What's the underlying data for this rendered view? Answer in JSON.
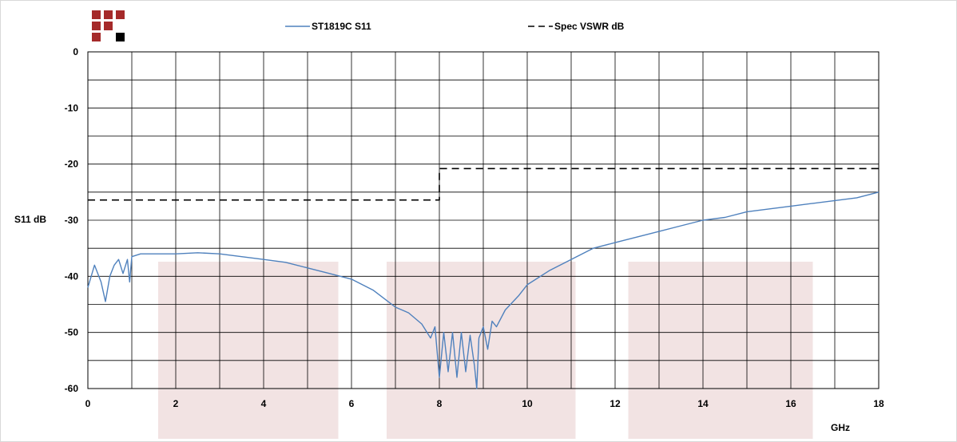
{
  "chart_data": {
    "type": "line",
    "title": "",
    "xlabel": "GHz",
    "ylabel": "S11 dB",
    "xlim": [
      0,
      18
    ],
    "ylim": [
      -60,
      0
    ],
    "x_ticks": [
      0,
      2,
      4,
      6,
      8,
      10,
      12,
      14,
      16,
      18
    ],
    "x_tick_labels": [
      "0",
      "2",
      "4",
      "6",
      "8",
      "10",
      "12",
      "14",
      "16",
      "18"
    ],
    "y_ticks": [
      0,
      -10,
      -20,
      -30,
      -40,
      -50,
      -60
    ],
    "y_tick_labels": [
      "0",
      "-10",
      "-20",
      "-30",
      "-40",
      "-50",
      "-60"
    ],
    "grid": true,
    "legend_position": "top-center",
    "highlight_bands": [
      [
        1.6,
        5.7
      ],
      [
        6.8,
        11.1
      ],
      [
        12.3,
        16.5
      ]
    ],
    "series": [
      {
        "name": "ST1819C S11",
        "color": "#4f81bd",
        "style": "solid",
        "x": [
          0.0,
          0.15,
          0.3,
          0.4,
          0.5,
          0.6,
          0.7,
          0.8,
          0.9,
          0.95,
          1.0,
          1.2,
          1.5,
          2.0,
          2.5,
          3.0,
          3.5,
          4.0,
          4.5,
          5.0,
          5.5,
          6.0,
          6.5,
          7.0,
          7.3,
          7.6,
          7.8,
          7.9,
          8.0,
          8.1,
          8.2,
          8.3,
          8.4,
          8.5,
          8.6,
          8.7,
          8.8,
          8.85,
          8.9,
          9.0,
          9.1,
          9.2,
          9.3,
          9.5,
          9.8,
          10.0,
          10.5,
          11.0,
          11.5,
          12.0,
          12.5,
          13.0,
          13.5,
          14.0,
          14.5,
          15.0,
          15.5,
          16.0,
          16.5,
          17.0,
          17.5,
          18.0
        ],
        "y": [
          -42,
          -38,
          -41,
          -44.5,
          -40,
          -38,
          -37,
          -39.5,
          -37,
          -41,
          -36.5,
          -36,
          -36,
          -36,
          -35.8,
          -36,
          -36.5,
          -37,
          -37.5,
          -38.5,
          -39.5,
          -40.5,
          -42.5,
          -45.5,
          -46.5,
          -48.5,
          -51,
          -49,
          -58,
          -50,
          -57,
          -50,
          -58,
          -50,
          -57,
          -50.5,
          -56,
          -60,
          -51,
          -49,
          -53,
          -48,
          -49,
          -46,
          -43.5,
          -41.5,
          -39,
          -37,
          -35,
          -34,
          -33,
          -32,
          -31,
          -30,
          -29.5,
          -28.5,
          -28,
          -27.5,
          -27,
          -26.5,
          -26,
          -25
        ]
      },
      {
        "name": "Spec VSWR dB",
        "color": "#000000",
        "style": "dashed",
        "x": [
          0,
          8,
          8,
          18
        ],
        "y": [
          -26.4,
          -26.4,
          -20.8,
          -20.8
        ]
      }
    ]
  }
}
